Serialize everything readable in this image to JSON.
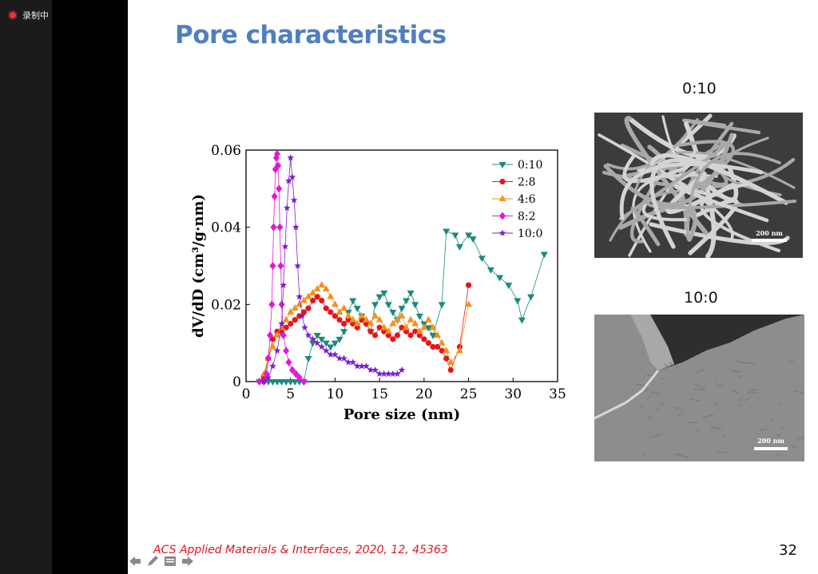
{
  "recording": {
    "label": "录制中"
  },
  "slide": {
    "title": "Pore characteristics",
    "citation": "ACS Applied Materials & Interfaces, 2020, 12, 45363",
    "page_number": "32",
    "sem_images": [
      {
        "label": "0:10",
        "scale_bar": "200 nm"
      },
      {
        "label": "10:0",
        "scale_bar": "200 nm"
      }
    ]
  },
  "nav": {
    "icons": [
      "arrow-left-icon",
      "pen-icon",
      "menu-icon",
      "arrow-right-icon"
    ]
  },
  "chart_data": {
    "type": "scatter",
    "xlabel": "Pore size (nm)",
    "ylabel": "dV/dD (cm³/g·nm)",
    "xlim": [
      0,
      35
    ],
    "ylim": [
      0,
      0.06
    ],
    "xticks": [
      "0",
      "5",
      "10",
      "15",
      "20",
      "25",
      "30",
      "35"
    ],
    "yticks": [
      "0",
      "0.02",
      "0.04",
      "0.06"
    ],
    "legend_position": "top-right",
    "series": [
      {
        "name": "0:10",
        "color": "#1a8a7e",
        "marker": "triangle-down",
        "points": [
          [
            1.5,
            0
          ],
          [
            2,
            0
          ],
          [
            2.5,
            0
          ],
          [
            3,
            0
          ],
          [
            3.5,
            0
          ],
          [
            4,
            0
          ],
          [
            4.5,
            0
          ],
          [
            5,
            0
          ],
          [
            5.5,
            0
          ],
          [
            6,
            0
          ],
          [
            6.5,
            0
          ],
          [
            7,
            0.006
          ],
          [
            7.5,
            0.01
          ],
          [
            8,
            0.012
          ],
          [
            8.5,
            0.011
          ],
          [
            9,
            0.01
          ],
          [
            9.5,
            0.009
          ],
          [
            10,
            0.01
          ],
          [
            10.5,
            0.011
          ],
          [
            11,
            0.013
          ],
          [
            11.5,
            0.018
          ],
          [
            12,
            0.021
          ],
          [
            12.5,
            0.019
          ],
          [
            13,
            0.017
          ],
          [
            13.5,
            0.015
          ],
          [
            14,
            0.013
          ],
          [
            14.5,
            0.02
          ],
          [
            15,
            0.022
          ],
          [
            15.5,
            0.023
          ],
          [
            16,
            0.02
          ],
          [
            16.5,
            0.018
          ],
          [
            17,
            0.016
          ],
          [
            17.5,
            0.019
          ],
          [
            18,
            0.021
          ],
          [
            18.5,
            0.023
          ],
          [
            19,
            0.02
          ],
          [
            19.5,
            0.017
          ],
          [
            20,
            0.015
          ],
          [
            20.5,
            0.014
          ],
          [
            21,
            0.012
          ],
          [
            22,
            0.02
          ],
          [
            22.5,
            0.039
          ],
          [
            23.5,
            0.038
          ],
          [
            24,
            0.035
          ],
          [
            25,
            0.038
          ],
          [
            25.5,
            0.037
          ],
          [
            26.5,
            0.032
          ],
          [
            27.5,
            0.029
          ],
          [
            28.5,
            0.027
          ],
          [
            29.5,
            0.025
          ],
          [
            30.5,
            0.021
          ],
          [
            31,
            0.016
          ],
          [
            32,
            0.022
          ],
          [
            33.5,
            0.033
          ]
        ]
      },
      {
        "name": "2:8",
        "color": "#e4161b",
        "marker": "circle",
        "points": [
          [
            2,
            0.001
          ],
          [
            2.5,
            0.006
          ],
          [
            3,
            0.011
          ],
          [
            3.5,
            0.013
          ],
          [
            4,
            0.013
          ],
          [
            4.5,
            0.014
          ],
          [
            5,
            0.015
          ],
          [
            5.5,
            0.016
          ],
          [
            6,
            0.017
          ],
          [
            6.5,
            0.018
          ],
          [
            7,
            0.019
          ],
          [
            7.5,
            0.021
          ],
          [
            8,
            0.022
          ],
          [
            8.5,
            0.021
          ],
          [
            9,
            0.019
          ],
          [
            9.5,
            0.018
          ],
          [
            10,
            0.017
          ],
          [
            10.5,
            0.016
          ],
          [
            11,
            0.015
          ],
          [
            11.5,
            0.016
          ],
          [
            12,
            0.015
          ],
          [
            12.5,
            0.014
          ],
          [
            13,
            0.016
          ],
          [
            13.5,
            0.015
          ],
          [
            14,
            0.013
          ],
          [
            14.5,
            0.012
          ],
          [
            15,
            0.014
          ],
          [
            15.5,
            0.013
          ],
          [
            16,
            0.012
          ],
          [
            16.5,
            0.011
          ],
          [
            17,
            0.012
          ],
          [
            17.5,
            0.014
          ],
          [
            18,
            0.013
          ],
          [
            18.5,
            0.012
          ],
          [
            19,
            0.013
          ],
          [
            19.5,
            0.012
          ],
          [
            20,
            0.011
          ],
          [
            20.5,
            0.01
          ],
          [
            21,
            0.009
          ],
          [
            21.5,
            0.009
          ],
          [
            22,
            0.008
          ],
          [
            22.5,
            0.006
          ],
          [
            23,
            0.003
          ],
          [
            24,
            0.009
          ],
          [
            25,
            0.025
          ]
        ]
      },
      {
        "name": "4:6",
        "color": "#f2921d",
        "marker": "triangle-up",
        "points": [
          [
            2,
            0.002
          ],
          [
            2.5,
            0.006
          ],
          [
            3,
            0.009
          ],
          [
            3.5,
            0.012
          ],
          [
            4,
            0.014
          ],
          [
            4.5,
            0.016
          ],
          [
            5,
            0.018
          ],
          [
            5.5,
            0.019
          ],
          [
            6,
            0.02
          ],
          [
            6.5,
            0.021
          ],
          [
            7,
            0.022
          ],
          [
            7.5,
            0.023
          ],
          [
            8,
            0.024
          ],
          [
            8.5,
            0.025
          ],
          [
            9,
            0.024
          ],
          [
            9.5,
            0.022
          ],
          [
            10,
            0.02
          ],
          [
            10.5,
            0.018
          ],
          [
            11,
            0.019
          ],
          [
            11.5,
            0.017
          ],
          [
            12,
            0.016
          ],
          [
            12.5,
            0.015
          ],
          [
            13,
            0.017
          ],
          [
            13.5,
            0.016
          ],
          [
            14,
            0.015
          ],
          [
            14.5,
            0.017
          ],
          [
            15,
            0.016
          ],
          [
            15.5,
            0.014
          ],
          [
            16,
            0.013
          ],
          [
            16.5,
            0.015
          ],
          [
            17,
            0.016
          ],
          [
            17.5,
            0.017
          ],
          [
            18,
            0.014
          ],
          [
            18.5,
            0.016
          ],
          [
            19,
            0.015
          ],
          [
            19.5,
            0.013
          ],
          [
            20,
            0.014
          ],
          [
            20.5,
            0.016
          ],
          [
            21,
            0.014
          ],
          [
            21.5,
            0.012
          ],
          [
            22,
            0.01
          ],
          [
            22.5,
            0.008
          ],
          [
            23,
            0.005
          ],
          [
            24,
            0.008
          ],
          [
            25,
            0.02
          ]
        ]
      },
      {
        "name": "8:2",
        "color": "#e316d8",
        "marker": "diamond",
        "points": [
          [
            1.5,
            0
          ],
          [
            2,
            0
          ],
          [
            2.3,
            0.002
          ],
          [
            2.5,
            0.006
          ],
          [
            2.7,
            0.012
          ],
          [
            2.9,
            0.02
          ],
          [
            3,
            0.03
          ],
          [
            3.1,
            0.04
          ],
          [
            3.2,
            0.048
          ],
          [
            3.3,
            0.055
          ],
          [
            3.4,
            0.058
          ],
          [
            3.5,
            0.059
          ],
          [
            3.6,
            0.056
          ],
          [
            3.7,
            0.05
          ],
          [
            3.8,
            0.04
          ],
          [
            3.9,
            0.03
          ],
          [
            4,
            0.02
          ],
          [
            4.2,
            0.012
          ],
          [
            4.5,
            0.008
          ],
          [
            4.8,
            0.005
          ],
          [
            5.2,
            0.003
          ],
          [
            5.6,
            0.002
          ],
          [
            6,
            0.001
          ],
          [
            6.5,
            0
          ]
        ]
      },
      {
        "name": "10:0",
        "color": "#7a1fcf",
        "marker": "star",
        "points": [
          [
            2,
            0
          ],
          [
            2.5,
            0.001
          ],
          [
            3,
            0.004
          ],
          [
            3.5,
            0.008
          ],
          [
            4,
            0.015
          ],
          [
            4.2,
            0.025
          ],
          [
            4.4,
            0.035
          ],
          [
            4.6,
            0.045
          ],
          [
            4.8,
            0.052
          ],
          [
            5,
            0.058
          ],
          [
            5.2,
            0.053
          ],
          [
            5.4,
            0.047
          ],
          [
            5.6,
            0.04
          ],
          [
            5.8,
            0.03
          ],
          [
            6,
            0.022
          ],
          [
            6.3,
            0.017
          ],
          [
            6.6,
            0.014
          ],
          [
            7,
            0.012
          ],
          [
            7.5,
            0.011
          ],
          [
            8,
            0.01
          ],
          [
            8.5,
            0.009
          ],
          [
            9,
            0.008
          ],
          [
            9.5,
            0.007
          ],
          [
            10,
            0.007
          ],
          [
            10.5,
            0.006
          ],
          [
            11,
            0.006
          ],
          [
            11.5,
            0.005
          ],
          [
            12,
            0.005
          ],
          [
            12.5,
            0.004
          ],
          [
            13,
            0.004
          ],
          [
            13.5,
            0.004
          ],
          [
            14,
            0.003
          ],
          [
            14.5,
            0.003
          ],
          [
            15,
            0.002
          ],
          [
            15.5,
            0.002
          ],
          [
            16,
            0.002
          ],
          [
            16.5,
            0.002
          ],
          [
            17,
            0.002
          ],
          [
            17.5,
            0.003
          ]
        ]
      }
    ]
  }
}
